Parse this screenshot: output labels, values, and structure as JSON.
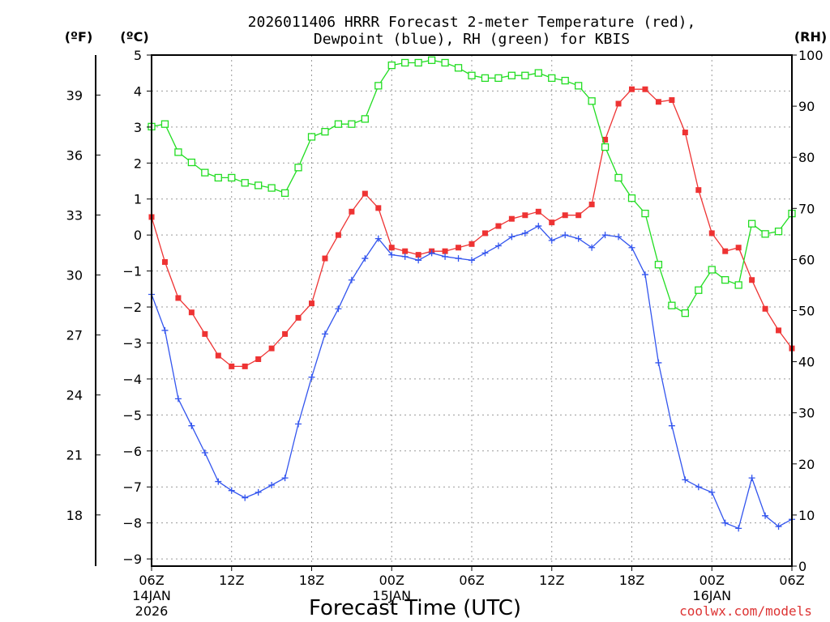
{
  "chart_data": {
    "type": "line",
    "title_line1": "2026011406 HRRR Forecast 2-meter Temperature (red),",
    "title_line2": "Dewpoint (blue), RH (green) for KBIS",
    "left_unit_f": "(ºF)",
    "left_unit_c": "(ºC)",
    "right_unit": "(RH)",
    "xlabel": "Forecast Time (UTC)",
    "watermark": "coolwx.com/models",
    "x_range_hours": [
      0,
      48
    ],
    "c_range": [
      -9.2,
      5
    ],
    "rh_range": [
      0,
      100
    ],
    "c_ticks": [
      "5",
      "4",
      "3",
      "2",
      "1",
      "0",
      "−1",
      "−2",
      "−3",
      "−4",
      "−5",
      "−6",
      "−7",
      "−8",
      "−9"
    ],
    "c_tick_values": [
      5,
      4,
      3,
      2,
      1,
      0,
      -1,
      -2,
      -3,
      -4,
      -5,
      -6,
      -7,
      -8,
      -9
    ],
    "f_ticks": [
      "39",
      "36",
      "33",
      "30",
      "27",
      "24",
      "21",
      "18"
    ],
    "f_tick_values": [
      39,
      36,
      33,
      30,
      27,
      24,
      21,
      18
    ],
    "rh_ticks": [
      "100",
      "90",
      "80",
      "70",
      "60",
      "50",
      "40",
      "30",
      "20",
      "10",
      "0"
    ],
    "rh_tick_values": [
      100,
      90,
      80,
      70,
      60,
      50,
      40,
      30,
      20,
      10,
      0
    ],
    "x_ticks": [
      {
        "h": 0,
        "label": "06Z",
        "sub1": "14JAN",
        "sub2": "2026"
      },
      {
        "h": 6,
        "label": "12Z",
        "sub1": "",
        "sub2": ""
      },
      {
        "h": 12,
        "label": "18Z",
        "sub1": "",
        "sub2": ""
      },
      {
        "h": 18,
        "label": "00Z",
        "sub1": "15JAN",
        "sub2": ""
      },
      {
        "h": 24,
        "label": "06Z",
        "sub1": "",
        "sub2": ""
      },
      {
        "h": 30,
        "label": "12Z",
        "sub1": "",
        "sub2": ""
      },
      {
        "h": 36,
        "label": "18Z",
        "sub1": "",
        "sub2": ""
      },
      {
        "h": 42,
        "label": "00Z",
        "sub1": "16JAN",
        "sub2": ""
      },
      {
        "h": 48,
        "label": "06Z",
        "sub1": "",
        "sub2": ""
      }
    ],
    "series": [
      {
        "name": "2-meter Temperature",
        "color": "#ee3333",
        "marker": "filled-square",
        "axis": "c",
        "values": [
          0.5,
          -0.75,
          -1.75,
          -2.15,
          -2.75,
          -3.35,
          -3.65,
          -3.65,
          -3.45,
          -3.15,
          -2.75,
          -2.3,
          -1.9,
          -0.65,
          0.0,
          0.65,
          1.15,
          0.75,
          -0.35,
          -0.45,
          -0.55,
          -0.45,
          -0.45,
          -0.35,
          -0.25,
          0.05,
          0.25,
          0.45,
          0.55,
          0.65,
          0.35,
          0.55,
          0.55,
          0.85,
          2.65,
          3.65,
          4.05,
          4.05,
          3.7,
          3.75,
          2.85,
          1.25,
          0.05,
          -0.45,
          -0.35,
          -1.25,
          -2.05,
          -2.65,
          -3.15
        ]
      },
      {
        "name": "Dewpoint",
        "color": "#3355ee",
        "marker": "plus",
        "axis": "c",
        "values": [
          -1.65,
          -2.65,
          -4.55,
          -5.3,
          -6.05,
          -6.85,
          -7.1,
          -7.3,
          -7.15,
          -6.95,
          -6.75,
          -5.25,
          -3.95,
          -2.75,
          -2.05,
          -1.25,
          -0.65,
          -0.1,
          -0.55,
          -0.6,
          -0.7,
          -0.5,
          -0.6,
          -0.65,
          -0.7,
          -0.5,
          -0.3,
          -0.05,
          0.05,
          0.25,
          -0.15,
          0.0,
          -0.1,
          -0.35,
          0.0,
          -0.05,
          -0.35,
          -1.1,
          -3.55,
          -5.3,
          -6.8,
          -7.0,
          -7.15,
          -8.0,
          -8.15,
          -6.75,
          -7.8,
          -8.1,
          -7.9
        ]
      },
      {
        "name": "RH",
        "color": "#22dd22",
        "marker": "open-square",
        "axis": "rh",
        "values": [
          86,
          86.5,
          81,
          79,
          77,
          76,
          76,
          75,
          74.5,
          74,
          73,
          78,
          84,
          85,
          86.5,
          86.5,
          87.5,
          94,
          98,
          98.5,
          98.5,
          99,
          98.5,
          97.5,
          96,
          95.5,
          95.5,
          96,
          96,
          96.5,
          95.5,
          95,
          94,
          91,
          82,
          76,
          72,
          69,
          59,
          51,
          49.5,
          54,
          58,
          56,
          55,
          67,
          65,
          65.5,
          69
        ]
      }
    ]
  }
}
